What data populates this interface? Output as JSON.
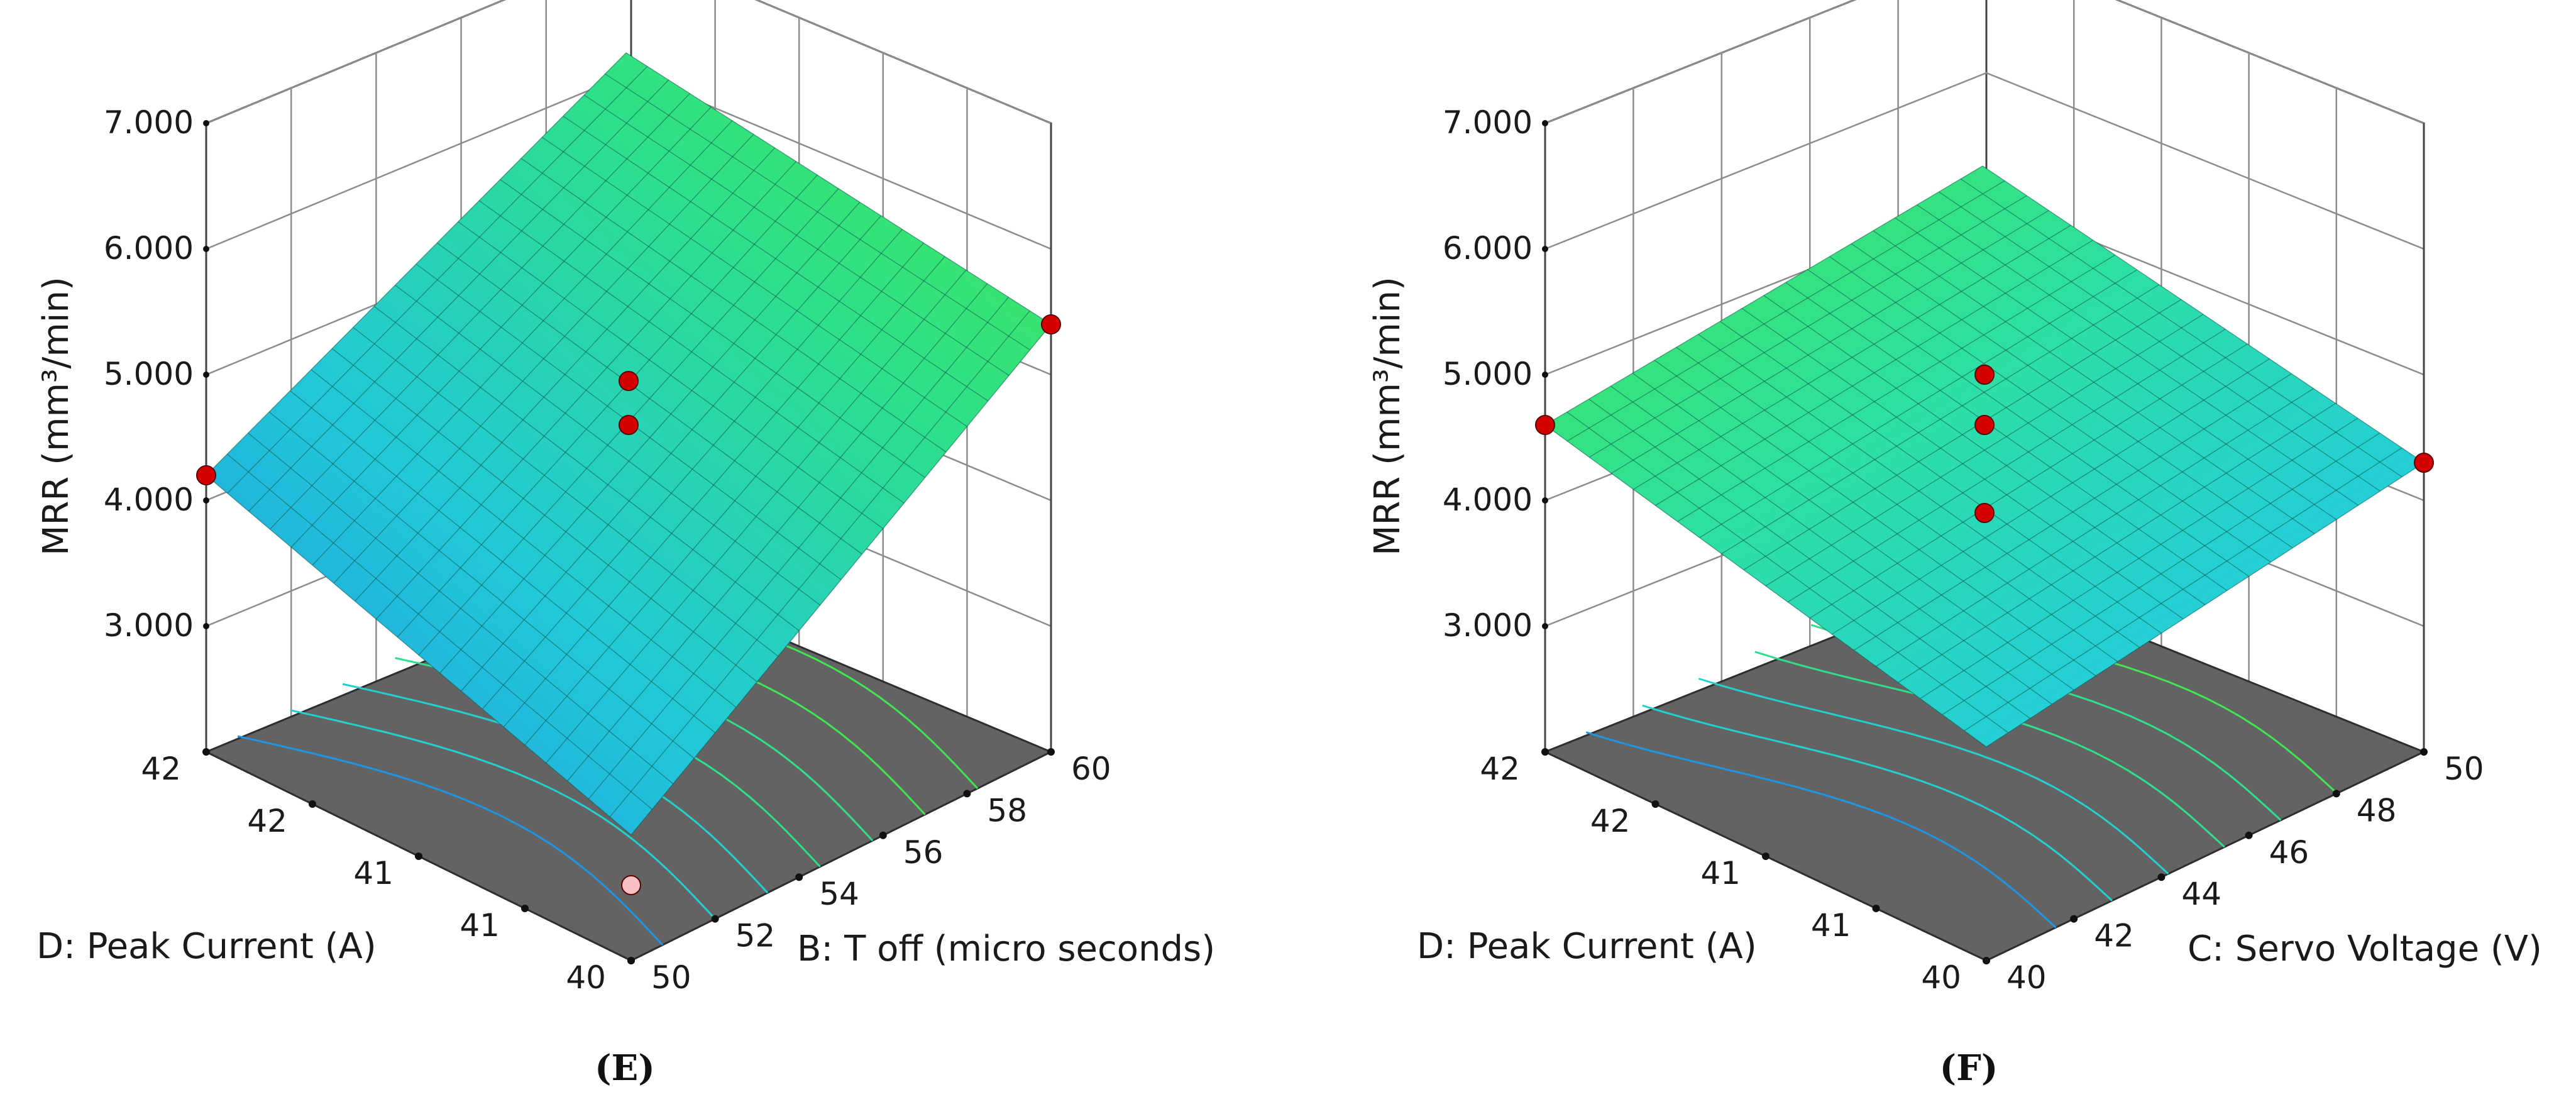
{
  "chart_data": [
    {
      "type": "surface",
      "panel_label": "(E)",
      "zlabel": "MRR (mm³/min)",
      "zticks": [
        "3.000",
        "4.000",
        "5.000",
        "6.000",
        "7.000"
      ],
      "zlim": [
        2.3,
        7.0
      ],
      "xlabel": "B: T off (micro seconds)",
      "xticks": [
        "50",
        "52",
        "54",
        "56",
        "58",
        "60"
      ],
      "xlim": [
        50,
        60
      ],
      "ylabel": "D: Peak Current (A)",
      "yticks": [
        "40",
        "41",
        "41",
        "42",
        "42"
      ],
      "ylim": [
        40,
        42
      ],
      "surface_corners": [
        {
          "x": 50,
          "y": 40,
          "z": 3.0
        },
        {
          "x": 60,
          "y": 40,
          "z": 5.4
        },
        {
          "x": 60,
          "y": 42,
          "z": 5.9
        },
        {
          "x": 50,
          "y": 42,
          "z": 4.2
        }
      ],
      "design_points": [
        {
          "x": 50,
          "y": 42,
          "z": 4.2,
          "position": "above"
        },
        {
          "x": 60,
          "y": 40,
          "z": 5.4,
          "position": "above"
        },
        {
          "x": 50,
          "y": 40,
          "z": 2.6,
          "position": "below"
        },
        {
          "x": 55,
          "y": 41,
          "z": 4.95,
          "position": "above"
        },
        {
          "x": 55,
          "y": 41,
          "z": 4.6,
          "position": "above"
        }
      ],
      "contour_count": 7,
      "colormap": [
        "#1e96e6",
        "#22d0d0",
        "#2ee08a",
        "#3ee650"
      ]
    },
    {
      "type": "surface",
      "panel_label": "(F)",
      "zlabel": "MRR (mm³/min)",
      "zticks": [
        "3.000",
        "4.000",
        "5.000",
        "6.000",
        "7.000"
      ],
      "zlim": [
        2.3,
        7.0
      ],
      "xlabel": "C: Servo Voltage (V)",
      "xticks": [
        "40",
        "42",
        "44",
        "46",
        "48",
        "50"
      ],
      "xlim": [
        40,
        50
      ],
      "ylabel": "D: Peak Current (A)",
      "yticks": [
        "40",
        "41",
        "41",
        "42",
        "42"
      ],
      "ylim": [
        40,
        42
      ],
      "surface_corners": [
        {
          "x": 40,
          "y": 40,
          "z": 3.7
        },
        {
          "x": 50,
          "y": 40,
          "z": 4.3
        },
        {
          "x": 50,
          "y": 42,
          "z": 5.0
        },
        {
          "x": 40,
          "y": 42,
          "z": 4.6
        }
      ],
      "design_points": [
        {
          "x": 40,
          "y": 42,
          "z": 4.6,
          "position": "above"
        },
        {
          "x": 50,
          "y": 40,
          "z": 4.3,
          "position": "above"
        },
        {
          "x": 45,
          "y": 41,
          "z": 5.0,
          "position": "above"
        },
        {
          "x": 45,
          "y": 41,
          "z": 4.6,
          "position": "above"
        },
        {
          "x": 45,
          "y": 41,
          "z": 3.9,
          "position": "below"
        }
      ],
      "contour_count": 6,
      "colormap": [
        "#1e96e6",
        "#22d0d0",
        "#2ee08a",
        "#3ee650"
      ]
    }
  ],
  "colors": {
    "floor": "#636363",
    "floor_edge": "#2e2e2e",
    "mesh_line": "#0e5a4a",
    "point_above": "#d40000",
    "point_below": "#f6c0c0"
  }
}
